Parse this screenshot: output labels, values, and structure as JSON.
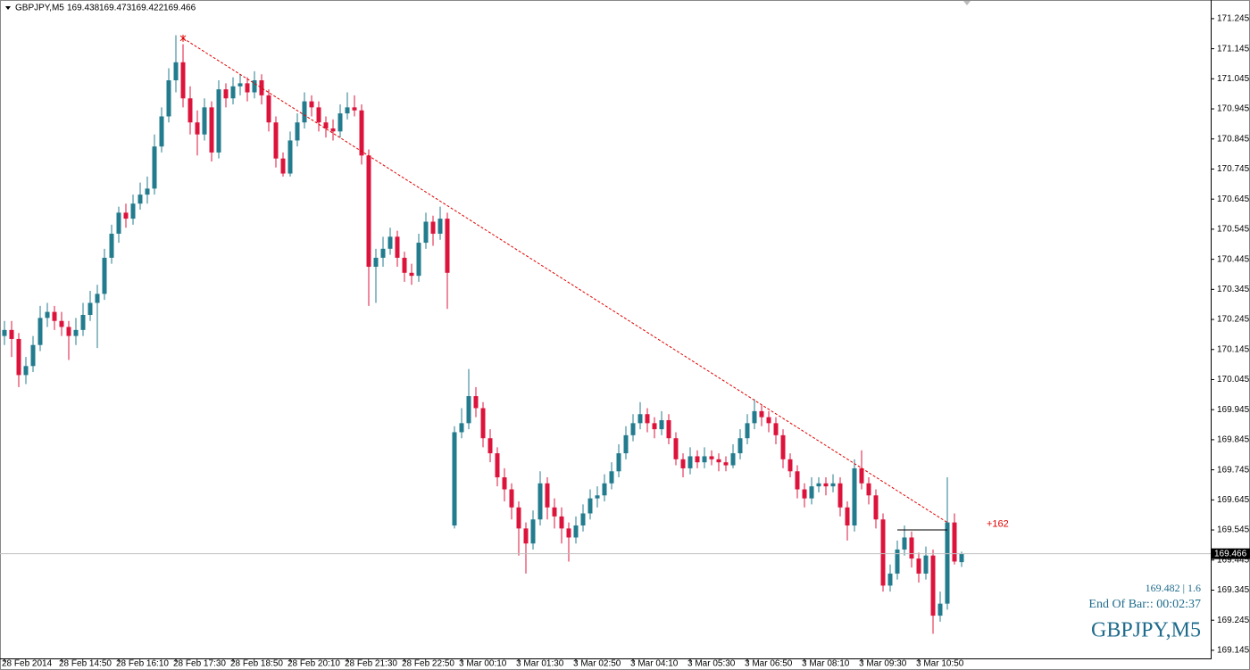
{
  "chart_data": {
    "type": "candlestick",
    "symbol": "GBPJPY,M5",
    "up_color": "#237b8e",
    "down_color": "#dc143c",
    "categories": [
      "28 Feb 2014",
      null,
      null,
      null,
      null,
      null,
      null,
      null,
      "28 Feb 14:50",
      null,
      null,
      null,
      null,
      null,
      null,
      null,
      "28 Feb 16:10",
      null,
      null,
      null,
      null,
      null,
      null,
      null,
      "28 Feb 17:30",
      null,
      null,
      null,
      null,
      null,
      null,
      null,
      "28 Feb 18:50",
      null,
      null,
      null,
      null,
      null,
      null,
      null,
      "28 Feb 20:10",
      null,
      null,
      null,
      null,
      null,
      null,
      null,
      "28 Feb 21:30",
      null,
      null,
      null,
      null,
      null,
      null,
      null,
      "28 Feb 22:50",
      null,
      null,
      null,
      null,
      null,
      null,
      null,
      "3 Mar 00:10",
      null,
      null,
      null,
      null,
      null,
      null,
      null,
      "3 Mar 01:30",
      null,
      null,
      null,
      null,
      null,
      null,
      null,
      "3 Mar 02:50",
      null,
      null,
      null,
      null,
      null,
      null,
      null,
      "3 Mar 04:10",
      null,
      null,
      null,
      null,
      null,
      null,
      null,
      "3 Mar 05:30",
      null,
      null,
      null,
      null,
      null,
      null,
      null,
      "3 Mar 06:50",
      null,
      null,
      null,
      null,
      null,
      null,
      null,
      "3 Mar 08:10",
      null,
      null,
      null,
      null,
      null,
      null,
      null,
      "3 Mar 09:30",
      null,
      null,
      null,
      null,
      null,
      null,
      null,
      "3 Mar 10:50",
      null,
      null,
      null,
      null,
      null,
      null
    ],
    "ohlc": [
      [
        170.19,
        170.24,
        170.16,
        170.21
      ],
      [
        170.21,
        170.24,
        170.12,
        170.18
      ],
      [
        170.18,
        170.2,
        170.02,
        170.06
      ],
      [
        170.06,
        170.12,
        170.03,
        170.09
      ],
      [
        170.09,
        170.19,
        170.07,
        170.16
      ],
      [
        170.16,
        170.29,
        170.14,
        170.25
      ],
      [
        170.25,
        170.3,
        170.22,
        170.27
      ],
      [
        170.27,
        170.29,
        170.21,
        170.24
      ],
      [
        170.24,
        170.27,
        170.19,
        170.22
      ],
      [
        170.22,
        170.24,
        170.11,
        170.19
      ],
      [
        170.19,
        170.25,
        170.16,
        170.21
      ],
      [
        170.21,
        170.3,
        170.19,
        170.26
      ],
      [
        170.26,
        170.34,
        170.24,
        170.3
      ],
      [
        170.3,
        170.36,
        170.15,
        170.33
      ],
      [
        170.33,
        170.48,
        170.31,
        170.45
      ],
      [
        170.45,
        170.56,
        170.43,
        170.53
      ],
      [
        170.53,
        170.62,
        170.5,
        170.6
      ],
      [
        170.6,
        170.63,
        170.55,
        170.58
      ],
      [
        170.58,
        170.66,
        170.56,
        170.63
      ],
      [
        170.63,
        170.7,
        170.61,
        170.66
      ],
      [
        170.66,
        170.72,
        170.63,
        170.68
      ],
      [
        170.68,
        170.86,
        170.66,
        170.82
      ],
      [
        170.82,
        170.95,
        170.8,
        170.92
      ],
      [
        170.92,
        171.08,
        170.9,
        171.04
      ],
      [
        171.04,
        171.19,
        171.0,
        171.1
      ],
      [
        171.1,
        171.16,
        170.95,
        170.98
      ],
      [
        170.98,
        171.02,
        170.86,
        170.9
      ],
      [
        170.9,
        170.94,
        170.79,
        170.86
      ],
      [
        170.86,
        170.98,
        170.84,
        170.95
      ],
      [
        170.95,
        170.97,
        170.77,
        170.8
      ],
      [
        170.8,
        171.04,
        170.78,
        171.01
      ],
      [
        171.01,
        171.03,
        170.95,
        170.98
      ],
      [
        170.98,
        171.05,
        170.96,
        171.02
      ],
      [
        171.02,
        171.06,
        170.99,
        171.03
      ],
      [
        171.03,
        171.05,
        170.97,
        171.0
      ],
      [
        171.0,
        171.07,
        170.98,
        171.04
      ],
      [
        171.04,
        171.06,
        170.96,
        170.99
      ],
      [
        170.99,
        171.01,
        170.87,
        170.9
      ],
      [
        170.9,
        170.92,
        170.75,
        170.78
      ],
      [
        170.78,
        170.8,
        170.72,
        170.73
      ],
      [
        170.73,
        170.87,
        170.72,
        170.84
      ],
      [
        170.84,
        170.93,
        170.82,
        170.9
      ],
      [
        170.9,
        171.0,
        170.88,
        170.97
      ],
      [
        170.97,
        170.99,
        170.92,
        170.95
      ],
      [
        170.95,
        170.97,
        170.87,
        170.9
      ],
      [
        170.9,
        170.92,
        170.85,
        170.88
      ],
      [
        170.88,
        170.91,
        170.84,
        170.87
      ],
      [
        170.87,
        170.96,
        170.85,
        170.93
      ],
      [
        170.93,
        171.0,
        170.91,
        170.95
      ],
      [
        170.95,
        170.99,
        170.92,
        170.94
      ],
      [
        170.94,
        170.96,
        170.76,
        170.79
      ],
      [
        170.79,
        170.81,
        170.29,
        170.42
      ],
      [
        170.42,
        170.48,
        170.3,
        170.45
      ],
      [
        170.45,
        170.52,
        170.42,
        170.48
      ],
      [
        170.48,
        170.55,
        170.46,
        170.52
      ],
      [
        170.52,
        170.54,
        170.42,
        170.45
      ],
      [
        170.45,
        170.47,
        170.37,
        170.4
      ],
      [
        170.4,
        170.43,
        170.36,
        170.39
      ],
      [
        170.39,
        170.53,
        170.37,
        170.5
      ],
      [
        170.5,
        170.6,
        170.48,
        170.57
      ],
      [
        170.57,
        170.59,
        170.49,
        170.53
      ],
      [
        170.53,
        170.62,
        170.51,
        170.58
      ],
      [
        170.58,
        170.6,
        170.28,
        170.4
      ],
      [
        169.56,
        169.89,
        169.55,
        169.87
      ],
      [
        169.87,
        169.95,
        169.85,
        169.9
      ],
      [
        169.9,
        170.08,
        169.88,
        169.99
      ],
      [
        169.99,
        170.02,
        169.92,
        169.95
      ],
      [
        169.95,
        169.97,
        169.82,
        169.85
      ],
      [
        169.85,
        169.88,
        169.77,
        169.8
      ],
      [
        169.8,
        169.82,
        169.69,
        169.72
      ],
      [
        169.72,
        169.75,
        169.64,
        169.68
      ],
      [
        169.68,
        169.7,
        169.58,
        169.62
      ],
      [
        169.62,
        169.64,
        169.46,
        169.55
      ],
      [
        169.55,
        169.57,
        169.4,
        169.5
      ],
      [
        169.5,
        169.61,
        169.48,
        169.58
      ],
      [
        169.58,
        169.74,
        169.56,
        169.7
      ],
      [
        169.7,
        169.72,
        169.58,
        169.62
      ],
      [
        169.62,
        169.65,
        169.55,
        169.59
      ],
      [
        169.59,
        169.62,
        169.5,
        169.55
      ],
      [
        169.55,
        169.57,
        169.44,
        169.52
      ],
      [
        169.52,
        169.59,
        169.5,
        169.56
      ],
      [
        169.56,
        169.63,
        169.54,
        169.6
      ],
      [
        169.6,
        169.68,
        169.58,
        169.65
      ],
      [
        169.65,
        169.69,
        169.62,
        169.66
      ],
      [
        169.66,
        169.73,
        169.64,
        169.7
      ],
      [
        169.7,
        169.77,
        169.68,
        169.74
      ],
      [
        169.74,
        169.83,
        169.72,
        169.8
      ],
      [
        169.8,
        169.89,
        169.78,
        169.86
      ],
      [
        169.86,
        169.93,
        169.84,
        169.9
      ],
      [
        169.9,
        169.97,
        169.88,
        169.93
      ],
      [
        169.93,
        169.95,
        169.87,
        169.9
      ],
      [
        169.9,
        169.92,
        169.85,
        169.88
      ],
      [
        169.88,
        169.94,
        169.86,
        169.91
      ],
      [
        169.91,
        169.93,
        169.83,
        169.85
      ],
      [
        169.85,
        169.87,
        169.76,
        169.78
      ],
      [
        169.78,
        169.8,
        169.72,
        169.75
      ],
      [
        169.75,
        169.82,
        169.73,
        169.79
      ],
      [
        169.79,
        169.81,
        169.75,
        169.77
      ],
      [
        169.77,
        169.82,
        169.75,
        169.79
      ],
      [
        169.79,
        169.81,
        169.76,
        169.78
      ],
      [
        169.78,
        169.8,
        169.74,
        169.77
      ],
      [
        169.77,
        169.79,
        169.74,
        169.76
      ],
      [
        169.76,
        169.83,
        169.75,
        169.8
      ],
      [
        169.8,
        169.88,
        169.78,
        169.85
      ],
      [
        169.85,
        169.93,
        169.83,
        169.9
      ],
      [
        169.9,
        169.98,
        169.88,
        169.94
      ],
      [
        169.94,
        169.96,
        169.89,
        169.92
      ],
      [
        169.92,
        169.94,
        169.87,
        169.9
      ],
      [
        169.9,
        169.92,
        169.83,
        169.86
      ],
      [
        169.86,
        169.88,
        169.75,
        169.78
      ],
      [
        169.78,
        169.8,
        169.72,
        169.74
      ],
      [
        169.74,
        169.76,
        169.65,
        169.68
      ],
      [
        169.68,
        169.7,
        169.62,
        169.65
      ],
      [
        169.65,
        169.72,
        169.63,
        169.69
      ],
      [
        169.69,
        169.72,
        169.67,
        169.7
      ],
      [
        169.7,
        169.72,
        169.66,
        169.69
      ],
      [
        169.69,
        169.73,
        169.67,
        169.7
      ],
      [
        169.7,
        169.72,
        169.59,
        169.62
      ],
      [
        169.62,
        169.64,
        169.51,
        169.56
      ],
      [
        169.56,
        169.78,
        169.54,
        169.75
      ],
      [
        169.75,
        169.81,
        169.68,
        169.7
      ],
      [
        169.7,
        169.72,
        169.63,
        169.66
      ],
      [
        169.66,
        169.68,
        169.55,
        169.58
      ],
      [
        169.58,
        169.6,
        169.34,
        169.36
      ],
      [
        169.36,
        169.43,
        169.34,
        169.4
      ],
      [
        169.4,
        169.51,
        169.38,
        169.48
      ],
      [
        169.48,
        169.56,
        169.46,
        169.52
      ],
      [
        169.52,
        169.54,
        169.42,
        169.45
      ],
      [
        169.45,
        169.47,
        169.37,
        169.4
      ],
      [
        169.4,
        169.49,
        169.38,
        169.46
      ],
      [
        169.46,
        169.48,
        169.2,
        169.26
      ],
      [
        169.26,
        169.34,
        169.24,
        169.3
      ],
      [
        169.3,
        169.72,
        169.28,
        169.57
      ],
      [
        169.57,
        169.6,
        169.43,
        169.44
      ],
      [
        169.438,
        169.473,
        169.422,
        169.466
      ]
    ],
    "ylim": [
      169.118,
      171.307
    ],
    "yticks": [
      171.245,
      171.145,
      171.045,
      170.945,
      170.845,
      170.745,
      170.645,
      170.545,
      170.445,
      170.345,
      170.245,
      170.145,
      170.045,
      169.945,
      169.845,
      169.745,
      169.645,
      169.545,
      169.445,
      169.345,
      169.245,
      169.145
    ],
    "trendline": {
      "from": {
        "index": 25,
        "price": 171.18
      },
      "to": {
        "index": 132,
        "price": 169.57
      },
      "color": "#e00000",
      "label": "+162"
    },
    "level": {
      "from": 125,
      "to": 132,
      "price": 169.545
    },
    "info": {
      "spread": "169.482 | 1.6",
      "timer": "End Of Bar:: 00:02:37",
      "symbol": "GBPJPY,M5"
    }
  }
}
